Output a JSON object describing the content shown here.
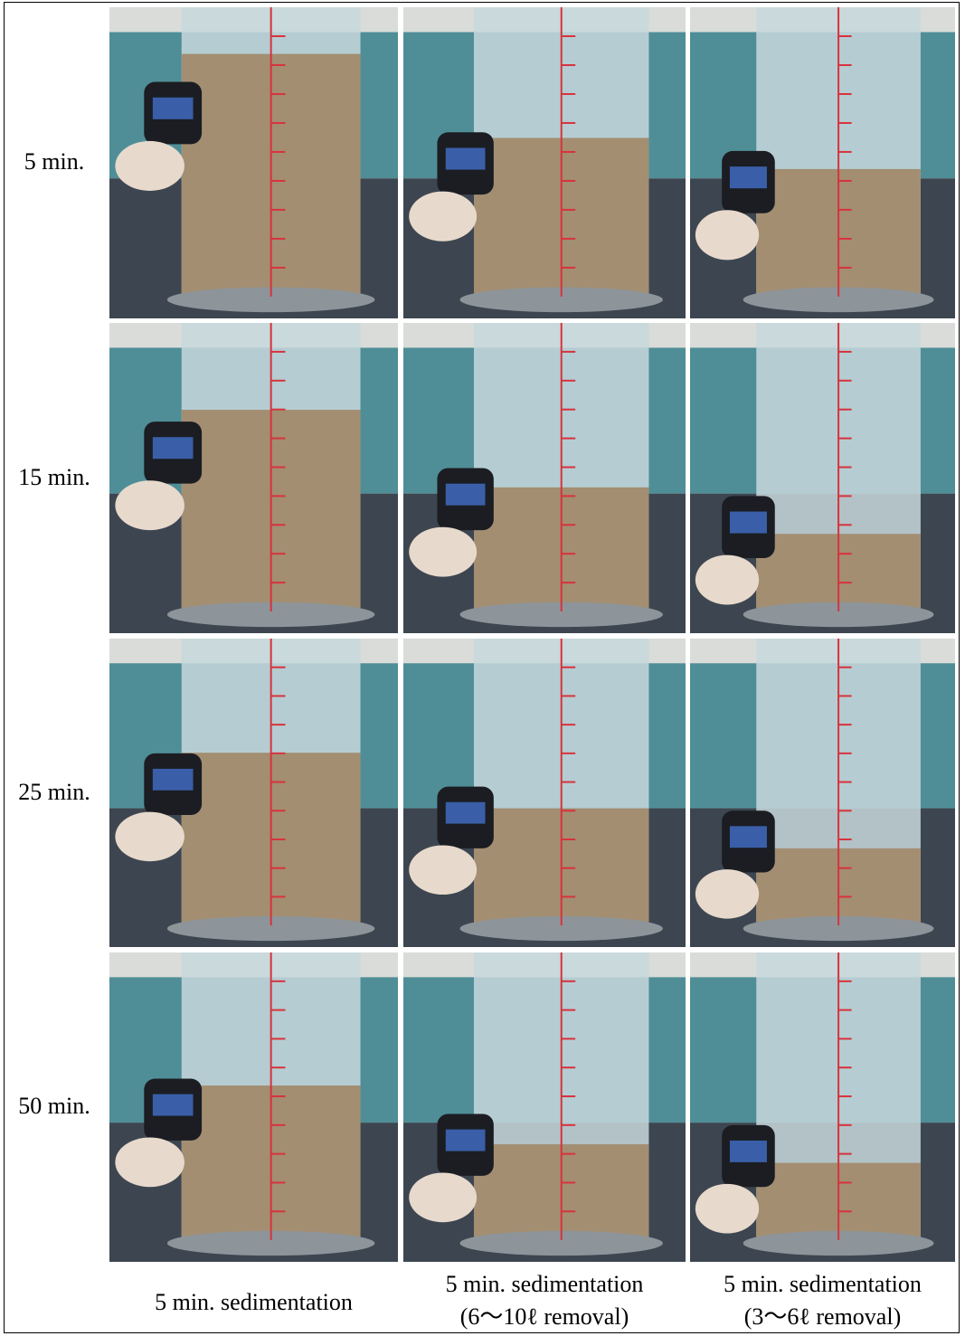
{
  "row_labels": [
    "5 min.",
    "15 min.",
    "25 min.",
    "50 min."
  ],
  "column_labels": [
    {
      "lines": [
        "5 min.  sedimentation"
      ]
    },
    {
      "lines": [
        "5 min.  sedimentation",
        "(6～10ℓ   removal)"
      ]
    },
    {
      "lines": [
        "5 min.  sedimentation",
        "(3～6ℓ   removal)"
      ]
    }
  ]
}
